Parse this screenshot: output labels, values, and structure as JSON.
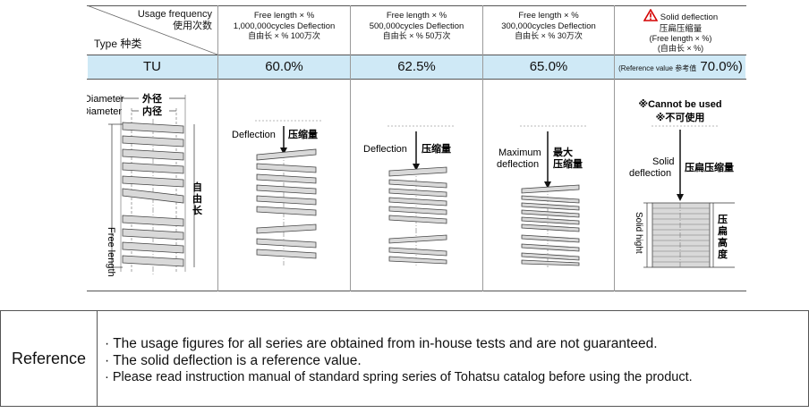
{
  "table": {
    "corner": {
      "usage_frequency_en": "Usage frequency",
      "usage_frequency_zh": "使用次数",
      "type_label": "Type  种类"
    },
    "columns": [
      {
        "line1": "Free length × %",
        "line2": "1,000,000cycles Deflection",
        "line3": "自由长 × %    100万次",
        "value": "60.0%"
      },
      {
        "line1": "Free length × %",
        "line2": "500,000cycles Deflection",
        "line3": "自由长 × %    50万次",
        "value": "62.5%"
      },
      {
        "line1": "Free length × %",
        "line2": "300,000cycles Deflection",
        "line3": "自由长 × %    30万次",
        "value": "65.0%"
      },
      {
        "line1": "Solid deflection",
        "line2": "压扁压缩量",
        "line3": "(Free length × %)",
        "line4": "(自由长 × %)",
        "value": "70.0%)",
        "value_prefix": "(Reference value 参考值"
      }
    ],
    "type_value": "TU"
  },
  "diagrams": {
    "outside_diameter": "Outside Diameter",
    "outside_diameter_zh": "外径",
    "inside_diameter": "Inside Diameter",
    "inside_diameter_zh": "内径",
    "free_length": "Free length",
    "free_length_zh": "自由长",
    "deflection": "Deflection",
    "deflection_zh": "压缩量",
    "maximum": "Maximum",
    "maximum_deflection": "deflection",
    "maximum_zh": "最大",
    "maximum_zh2": "压缩量",
    "cannot_be_used": "※Cannot be used",
    "cannot_be_used_zh": "※不可使用",
    "solid": "Solid",
    "solid_deflection": "deflection",
    "solid_deflection_zh": "压扁压缩量",
    "solid_hight": "Solid hight",
    "solid_height_zh": "压扁高度"
  },
  "reference": {
    "label": "Reference",
    "lines": [
      "· The usage figures for all series are obtained from in-house tests and are not guaranteed.",
      "· The solid deflection is a reference value.",
      "· Please read instruction manual of standard spring series of Tohatsu catalog before using the product."
    ]
  },
  "colors": {
    "band": "#cfe9f6",
    "spring_fill": "#d9d9d9",
    "warning": "#d40000"
  }
}
